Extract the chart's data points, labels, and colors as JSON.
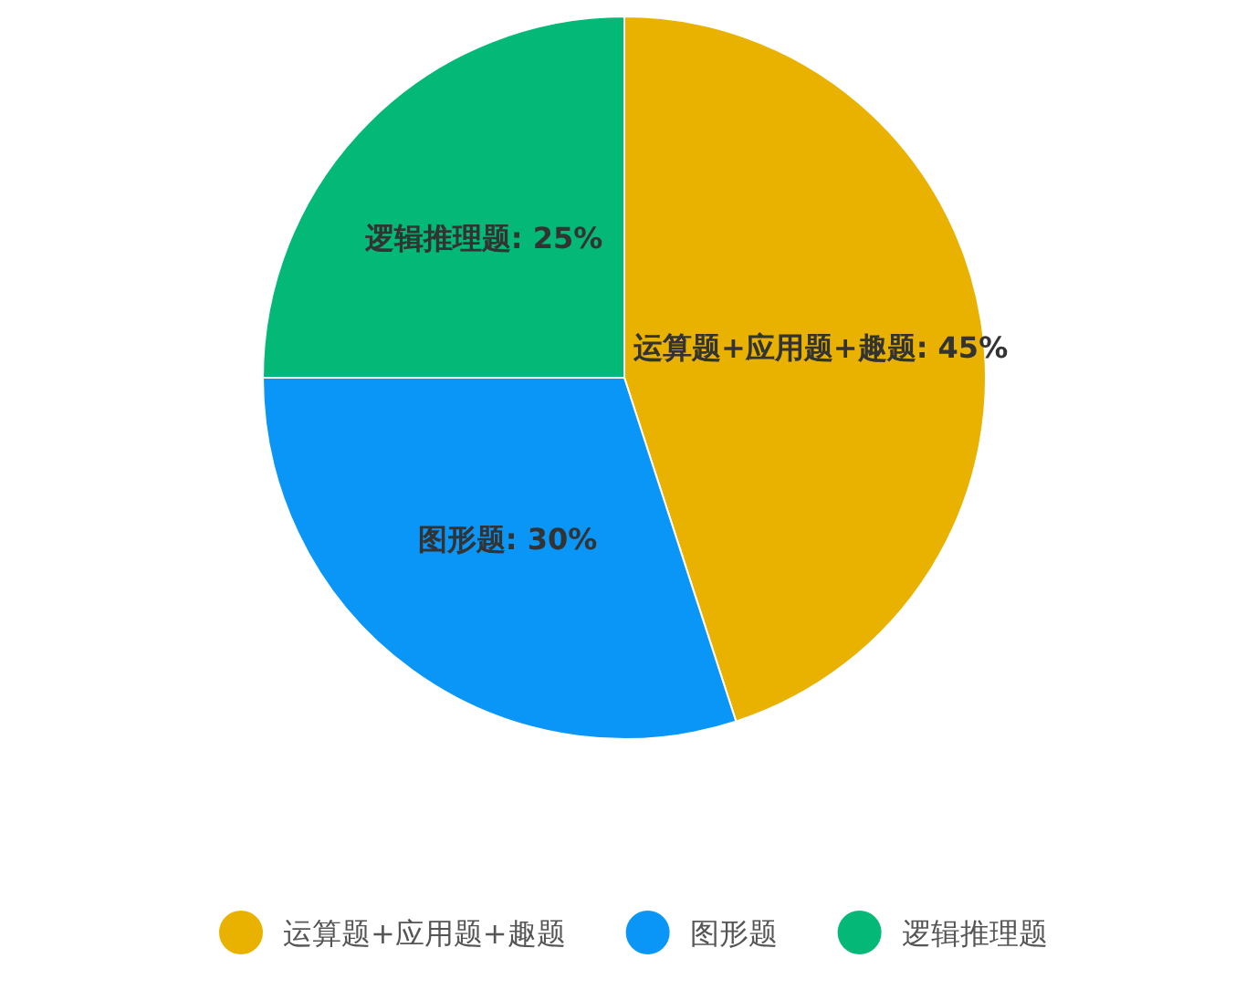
{
  "chart_data": {
    "type": "pie",
    "categories": [
      "运算题+应用题+趣题",
      "图形题",
      "逻辑推理题"
    ],
    "values": [
      45,
      30,
      25
    ],
    "colors": [
      "#e9b200",
      "#0a96f6",
      "#04b977"
    ],
    "value_labels": [
      "运算题+应用题+趣题: 45%",
      "图形题: 30%",
      "逻辑推理题: 25%"
    ],
    "legend": "bottom"
  }
}
